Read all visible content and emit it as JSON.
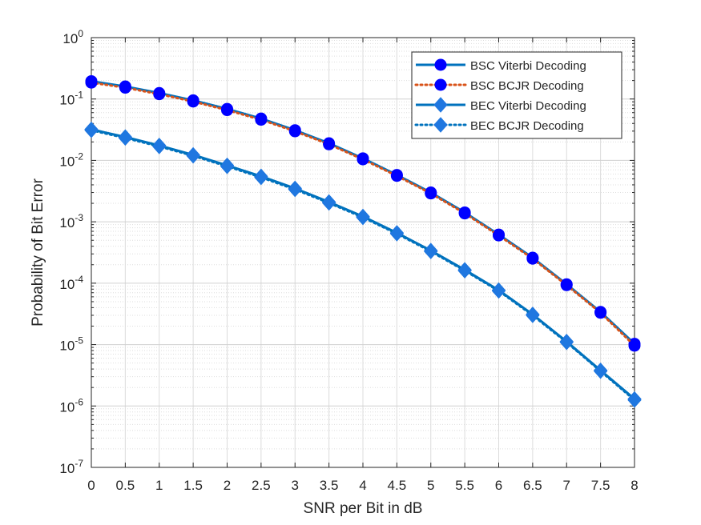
{
  "chart_data": {
    "type": "line",
    "xlabel": "SNR per Bit in dB",
    "ylabel": "Probability of Bit Error",
    "xlim": [
      0,
      8
    ],
    "ylim": [
      1e-07,
      1
    ],
    "yscale": "log",
    "grid": true,
    "minor_grid": true,
    "legend_position": "top-right",
    "x": [
      0,
      0.5,
      1,
      1.5,
      2,
      2.5,
      3,
      3.5,
      4,
      4.5,
      5,
      5.5,
      6,
      6.5,
      7,
      7.5,
      8
    ],
    "x_tick_labels": [
      "0",
      "0.5",
      "1",
      "1.5",
      "2",
      "2.5",
      "3",
      "3.5",
      "4",
      "4.5",
      "5",
      "5.5",
      "6",
      "6.5",
      "7",
      "7.5",
      "8"
    ],
    "y_tick_labels": [
      {
        "base": "10",
        "exp": "0"
      },
      {
        "base": "10",
        "exp": "-1"
      },
      {
        "base": "10",
        "exp": "-2"
      },
      {
        "base": "10",
        "exp": "-3"
      },
      {
        "base": "10",
        "exp": "-4"
      },
      {
        "base": "10",
        "exp": "-5"
      },
      {
        "base": "10",
        "exp": "-6"
      },
      {
        "base": "10",
        "exp": "-7"
      }
    ],
    "series": [
      {
        "name": "BSC Viterbi Decoding",
        "color": "#0072BD",
        "line": "solid",
        "marker": "circle",
        "marker_color": "#0000FF",
        "values": [
          0.195,
          0.16,
          0.125,
          0.095,
          0.069,
          0.048,
          0.031,
          0.019,
          0.0108,
          0.0058,
          0.003,
          0.00142,
          0.00062,
          0.00026,
          9.6e-05,
          3.4e-05,
          1.03e-05
        ]
      },
      {
        "name": "BSC BCJR Decoding",
        "color": "#D95319",
        "line": "dotted",
        "marker": "circle",
        "marker_color": "#0000FF",
        "values": [
          0.185,
          0.153,
          0.12,
          0.091,
          0.066,
          0.046,
          0.0298,
          0.0183,
          0.0104,
          0.0056,
          0.0029,
          0.00137,
          0.0006,
          0.000251,
          9.3e-05,
          3.3e-05,
          9.6e-06
        ]
      },
      {
        "name": "BEC Viterbi Decoding",
        "color": "#0072BD",
        "line": "solid",
        "marker": "diamond",
        "marker_color": "#1F77E0",
        "values": [
          0.032,
          0.024,
          0.0175,
          0.0123,
          0.0083,
          0.0055,
          0.0035,
          0.0021,
          0.00122,
          0.00066,
          0.00034,
          0.000165,
          7.7e-05,
          3.1e-05,
          1.12e-05,
          3.8e-06,
          1.3e-06
        ]
      },
      {
        "name": "BEC BCJR Decoding",
        "color": "#0072BD",
        "line": "dotted",
        "marker": "diamond",
        "marker_color": "#1F77E0",
        "values": [
          0.031,
          0.0232,
          0.0169,
          0.0119,
          0.008,
          0.0053,
          0.00337,
          0.00203,
          0.00118,
          0.00064,
          0.00033,
          0.00016,
          7.5e-05,
          3e-05,
          1.09e-05,
          3.7e-06,
          1.25e-06
        ]
      }
    ]
  }
}
